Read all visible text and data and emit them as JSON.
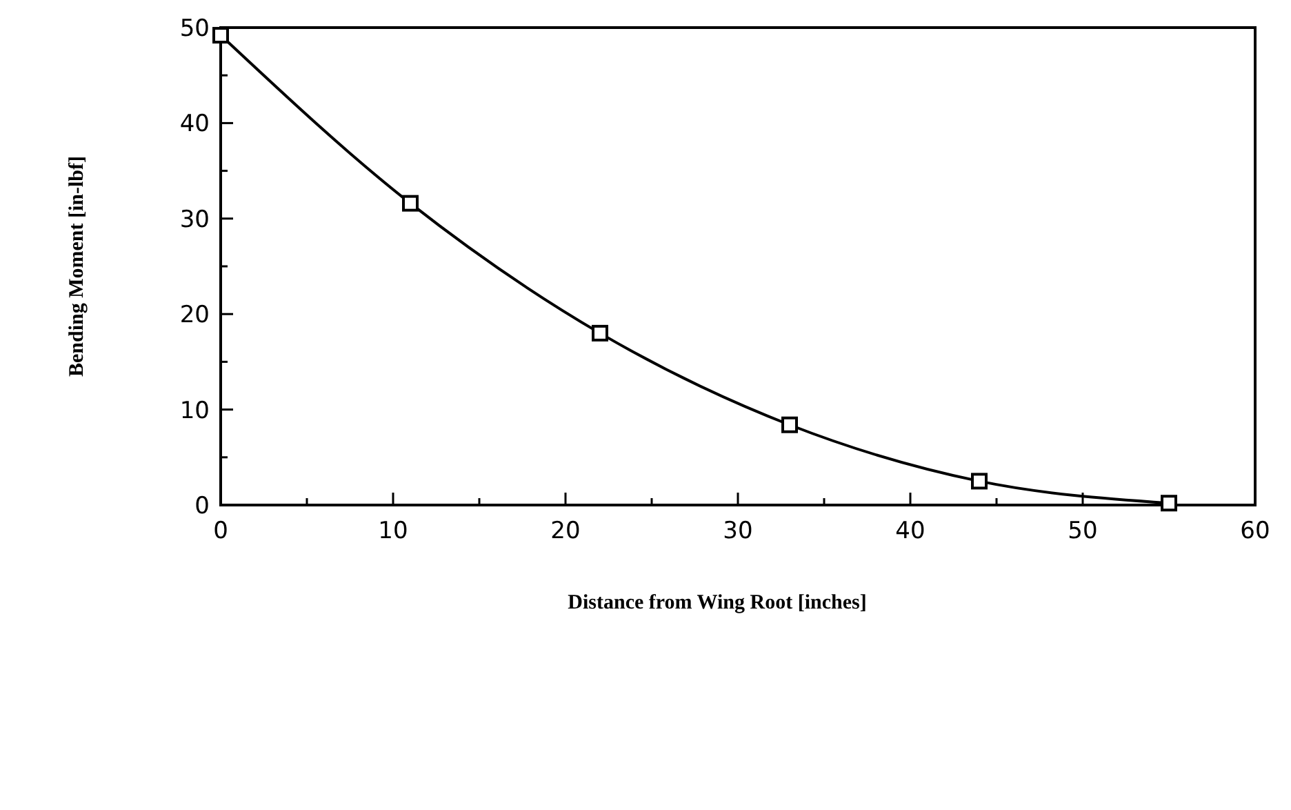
{
  "chart_data": {
    "type": "line",
    "xlabel": "Distance from Wing Root [inches]",
    "ylabel": "Bending Moment [in-lbf]",
    "x": [
      0,
      11,
      22,
      33,
      44,
      55
    ],
    "series": [
      {
        "color": "#000000",
        "values": [
          49.2,
          31.6,
          18,
          8.4,
          2.5,
          0.2
        ]
      }
    ],
    "xlim": [
      0,
      60
    ],
    "ylim": [
      0,
      50
    ],
    "xticks": [
      0,
      {
        "value": 5,
        "label": null
      },
      10,
      {
        "value": 15,
        "label": null
      },
      20,
      {
        "value": 25,
        "label": null
      },
      30,
      {
        "value": 35,
        "label": null
      },
      40,
      {
        "value": 45,
        "label": null
      },
      50,
      {
        "value": 55,
        "label": null
      },
      60
    ],
    "yticks": [
      0,
      {
        "value": 5,
        "label": null
      },
      10,
      {
        "value": 15,
        "label": null
      },
      20,
      {
        "value": 25,
        "label": null
      },
      30,
      {
        "value": 35,
        "label": null
      },
      40,
      {
        "value": 45,
        "label": null
      },
      50
    ],
    "marker": "square",
    "line_style": "solid",
    "grid": false
  }
}
